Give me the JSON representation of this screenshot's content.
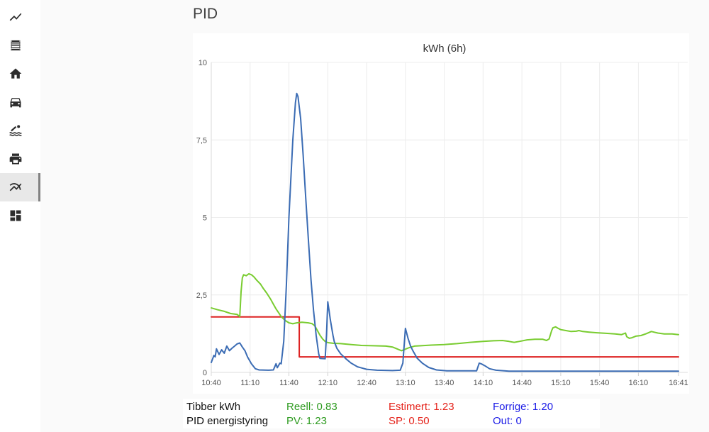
{
  "page": {
    "title": "PID"
  },
  "sidebar": {
    "items": [
      {
        "icon": "trend-line-icon",
        "active": false
      },
      {
        "icon": "receipt-list-icon",
        "active": false
      },
      {
        "icon": "home-icon",
        "active": false
      },
      {
        "icon": "car-icon",
        "active": false
      },
      {
        "icon": "pool-icon",
        "active": false
      },
      {
        "icon": "printer-icon",
        "active": false
      },
      {
        "icon": "multiline-chart-icon",
        "active": true
      },
      {
        "icon": "dashboard-icon",
        "active": false
      }
    ]
  },
  "chart_data": {
    "type": "line",
    "title": "kWh (6h)",
    "grid": true,
    "ylim": [
      0,
      10
    ],
    "y_ticks": [
      {
        "label": "10",
        "value": 10
      },
      {
        "label": "7,5",
        "value": 7.5
      },
      {
        "label": "5",
        "value": 5
      },
      {
        "label": "2,5",
        "value": 2.5
      },
      {
        "label": "0",
        "value": 0
      }
    ],
    "x_ticks": [
      "10:40",
      "11:10",
      "11:40",
      "12:10",
      "12:40",
      "13:10",
      "13:40",
      "14:10",
      "14:40",
      "15:10",
      "15:40",
      "16:10",
      "16:41"
    ],
    "series": [
      {
        "name": "SP setpoint",
        "color": "#dd2121",
        "points": [
          [
            "10:40",
            1.79
          ],
          [
            "11:48",
            1.79
          ],
          [
            "11:48",
            0.5
          ],
          [
            "16:41",
            0.5
          ]
        ]
      },
      {
        "name": "PID energistyring PV",
        "color": "#79cc30",
        "points": [
          [
            "10:40",
            2.08
          ],
          [
            "10:45",
            2.02
          ],
          [
            "10:50",
            1.97
          ],
          [
            "10:55",
            1.9
          ],
          [
            "11:00",
            1.87
          ],
          [
            "11:02",
            1.8
          ],
          [
            "11:03",
            2.6
          ],
          [
            "11:04",
            3.05
          ],
          [
            "11:05",
            3.15
          ],
          [
            "11:07",
            3.12
          ],
          [
            "11:09",
            3.18
          ],
          [
            "11:11",
            3.15
          ],
          [
            "11:13",
            3.08
          ],
          [
            "11:15",
            2.98
          ],
          [
            "11:18",
            2.85
          ],
          [
            "11:20",
            2.72
          ],
          [
            "11:23",
            2.55
          ],
          [
            "11:26",
            2.35
          ],
          [
            "11:28",
            2.2
          ],
          [
            "11:30",
            2.05
          ],
          [
            "11:32",
            1.93
          ],
          [
            "11:34",
            1.8
          ],
          [
            "11:37",
            1.68
          ],
          [
            "11:40",
            1.6
          ],
          [
            "11:43",
            1.57
          ],
          [
            "11:46",
            1.6
          ],
          [
            "11:50",
            1.62
          ],
          [
            "11:55",
            1.6
          ],
          [
            "11:58",
            1.57
          ],
          [
            "12:00",
            1.5
          ],
          [
            "12:02",
            1.35
          ],
          [
            "12:04",
            1.2
          ],
          [
            "12:06",
            1.08
          ],
          [
            "12:08",
            1.0
          ],
          [
            "12:10",
            0.96
          ],
          [
            "12:14",
            0.94
          ],
          [
            "12:20",
            0.93
          ],
          [
            "12:28",
            0.9
          ],
          [
            "12:36",
            0.87
          ],
          [
            "12:45",
            0.86
          ],
          [
            "12:55",
            0.85
          ],
          [
            "13:00",
            0.82
          ],
          [
            "13:04",
            0.75
          ],
          [
            "13:07",
            0.7
          ],
          [
            "13:10",
            0.75
          ],
          [
            "13:13",
            0.8
          ],
          [
            "13:17",
            0.85
          ],
          [
            "13:22",
            0.86
          ],
          [
            "13:30",
            0.88
          ],
          [
            "13:40",
            0.9
          ],
          [
            "13:50",
            0.93
          ],
          [
            "14:00",
            0.97
          ],
          [
            "14:10",
            1.0
          ],
          [
            "14:18",
            1.02
          ],
          [
            "14:25",
            1.03
          ],
          [
            "14:30",
            1.0
          ],
          [
            "14:34",
            0.97
          ],
          [
            "14:38",
            1.0
          ],
          [
            "14:44",
            1.05
          ],
          [
            "14:50",
            1.07
          ],
          [
            "14:56",
            1.07
          ],
          [
            "14:59",
            1.03
          ],
          [
            "15:01",
            1.08
          ],
          [
            "15:03",
            1.35
          ],
          [
            "15:04",
            1.44
          ],
          [
            "15:06",
            1.47
          ],
          [
            "15:08",
            1.42
          ],
          [
            "15:10",
            1.38
          ],
          [
            "15:14",
            1.35
          ],
          [
            "15:18",
            1.32
          ],
          [
            "15:22",
            1.33
          ],
          [
            "15:24",
            1.35
          ],
          [
            "15:27",
            1.32
          ],
          [
            "15:32",
            1.3
          ],
          [
            "15:38",
            1.28
          ],
          [
            "15:45",
            1.26
          ],
          [
            "15:52",
            1.24
          ],
          [
            "15:57",
            1.22
          ],
          [
            "16:00",
            1.27
          ],
          [
            "16:01",
            1.15
          ],
          [
            "16:03",
            1.1
          ],
          [
            "16:05",
            1.12
          ],
          [
            "16:08",
            1.17
          ],
          [
            "16:12",
            1.19
          ],
          [
            "16:16",
            1.25
          ],
          [
            "16:20",
            1.32
          ],
          [
            "16:22",
            1.3
          ],
          [
            "16:25",
            1.27
          ],
          [
            "16:30",
            1.24
          ],
          [
            "16:36",
            1.24
          ],
          [
            "16:41",
            1.22
          ]
        ]
      },
      {
        "name": "Tibber kWh",
        "color": "#3b6cb4",
        "points": [
          [
            "10:40",
            0.32
          ],
          [
            "10:42",
            0.55
          ],
          [
            "10:43",
            0.5
          ],
          [
            "10:44",
            0.76
          ],
          [
            "10:46",
            0.58
          ],
          [
            "10:48",
            0.73
          ],
          [
            "10:50",
            0.62
          ],
          [
            "10:52",
            0.85
          ],
          [
            "10:54",
            0.7
          ],
          [
            "10:56",
            0.78
          ],
          [
            "10:58",
            0.85
          ],
          [
            "11:00",
            0.92
          ],
          [
            "11:02",
            0.95
          ],
          [
            "11:04",
            0.82
          ],
          [
            "11:06",
            0.7
          ],
          [
            "11:08",
            0.5
          ],
          [
            "11:11",
            0.28
          ],
          [
            "11:14",
            0.12
          ],
          [
            "11:17",
            0.08
          ],
          [
            "11:24",
            0.07
          ],
          [
            "11:28",
            0.08
          ],
          [
            "11:30",
            0.28
          ],
          [
            "11:31",
            0.15
          ],
          [
            "11:33",
            0.3
          ],
          [
            "11:34",
            0.28
          ],
          [
            "11:36",
            1.0
          ],
          [
            "11:38",
            2.8
          ],
          [
            "11:40",
            5.0
          ],
          [
            "11:43",
            7.5
          ],
          [
            "11:45",
            8.7
          ],
          [
            "11:46",
            9.0
          ],
          [
            "11:47",
            8.9
          ],
          [
            "11:49",
            8.2
          ],
          [
            "11:51",
            7.0
          ],
          [
            "11:53",
            5.6
          ],
          [
            "11:55",
            4.3
          ],
          [
            "11:57",
            3.0
          ],
          [
            "11:59",
            2.0
          ],
          [
            "12:01",
            1.2
          ],
          [
            "12:03",
            0.6
          ],
          [
            "12:04",
            0.45
          ],
          [
            "12:08",
            0.44
          ],
          [
            "12:09",
            1.2
          ],
          [
            "12:10",
            2.28
          ],
          [
            "12:11",
            2.0
          ],
          [
            "12:12",
            1.7
          ],
          [
            "12:14",
            1.2
          ],
          [
            "12:15",
            1.0
          ],
          [
            "12:17",
            0.78
          ],
          [
            "12:20",
            0.6
          ],
          [
            "12:24",
            0.44
          ],
          [
            "12:28",
            0.3
          ],
          [
            "12:33",
            0.18
          ],
          [
            "12:40",
            0.1
          ],
          [
            "12:48",
            0.07
          ],
          [
            "13:00",
            0.06
          ],
          [
            "13:06",
            0.07
          ],
          [
            "13:08",
            0.3
          ],
          [
            "13:10",
            1.42
          ],
          [
            "13:12",
            1.1
          ],
          [
            "13:14",
            0.85
          ],
          [
            "13:16",
            0.68
          ],
          [
            "13:19",
            0.46
          ],
          [
            "13:23",
            0.3
          ],
          [
            "13:28",
            0.16
          ],
          [
            "13:34",
            0.08
          ],
          [
            "13:42",
            0.05
          ],
          [
            "14:05",
            0.05
          ],
          [
            "14:07",
            0.3
          ],
          [
            "14:09",
            0.27
          ],
          [
            "14:12",
            0.2
          ],
          [
            "14:15",
            0.12
          ],
          [
            "14:20",
            0.07
          ],
          [
            "14:30",
            0.04
          ],
          [
            "15:00",
            0.04
          ],
          [
            "15:30",
            0.04
          ],
          [
            "16:00",
            0.04
          ],
          [
            "16:41",
            0.04
          ]
        ]
      }
    ]
  },
  "legend": {
    "colors": {
      "label": "#111111",
      "green": "#2e9b20",
      "red": "#e5231b",
      "blue": "#1c1ce6"
    },
    "rows": [
      {
        "label": "Tibber kWh",
        "green": "Reell: 0.83",
        "red": "Estimert: 1.23",
        "blue": "Forrige: 1.20"
      },
      {
        "label": "PID energistyring",
        "green": "PV: 1.23",
        "red": "SP: 0.50",
        "blue": "Out: 0"
      }
    ]
  }
}
